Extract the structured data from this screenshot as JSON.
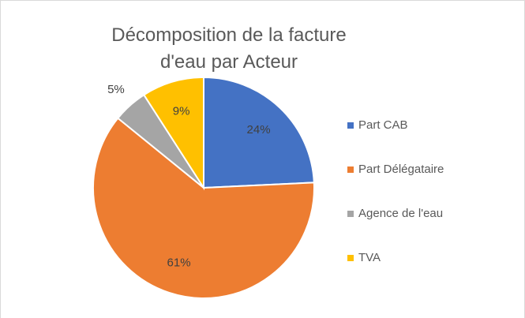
{
  "chart_data": {
    "type": "pie",
    "title": "Décomposition de la facture d'eau par Acteur",
    "categories": [
      "Part CAB",
      "Part Délégataire",
      "Agence de l'eau",
      "TVA"
    ],
    "values": [
      24,
      61,
      5,
      9
    ],
    "value_labels": [
      "24%",
      "61%",
      "5%",
      "9%"
    ],
    "colors": [
      "#4472c4",
      "#ed7d31",
      "#a5a5a5",
      "#ffc000"
    ],
    "legend": "right"
  }
}
